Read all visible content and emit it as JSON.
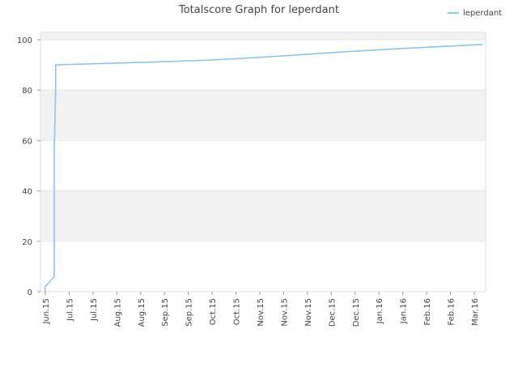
{
  "chart_data": {
    "type": "line",
    "title": "Totalscore Graph for leperdant",
    "xlabel": "",
    "ylabel": "",
    "ylim": [
      0,
      100
    ],
    "y_ticks": [
      0,
      20,
      40,
      60,
      80,
      100
    ],
    "x_tick_labels": [
      "Jun.15",
      "Jul.15",
      "Jul.15",
      "Aug.15",
      "Aug.15",
      "Sep.15",
      "Sep.15",
      "Oct.15",
      "Oct.15",
      "Nov.15",
      "Nov.15",
      "Nov.15",
      "Dec.15",
      "Dec.15",
      "Jan.16",
      "Jan.16",
      "Feb.16",
      "Feb.16",
      "Mar.16"
    ],
    "x_range": [
      "2015-06-01",
      "2016-03-19"
    ],
    "grid": "horizontal bands",
    "legend_position": "top-right",
    "series": [
      {
        "name": "leperdant",
        "color": "#8ec3ee",
        "points": [
          [
            "2015-06-04",
            0
          ],
          [
            "2015-06-04",
            2
          ],
          [
            "2015-06-07",
            4
          ],
          [
            "2015-06-10",
            6
          ],
          [
            "2015-06-10",
            35
          ],
          [
            "2015-06-10",
            55
          ],
          [
            "2015-06-11",
            82
          ],
          [
            "2015-06-11",
            90
          ],
          [
            "2015-06-20",
            90.2
          ],
          [
            "2015-07-15",
            90.6
          ],
          [
            "2015-08-15",
            91.2
          ],
          [
            "2015-09-15",
            91.8
          ],
          [
            "2015-10-15",
            92.7
          ],
          [
            "2015-11-15",
            93.9
          ],
          [
            "2015-12-15",
            95.1
          ],
          [
            "2016-01-15",
            96.2
          ],
          [
            "2016-02-15",
            97.2
          ],
          [
            "2016-03-17",
            98.1
          ]
        ]
      }
    ]
  }
}
